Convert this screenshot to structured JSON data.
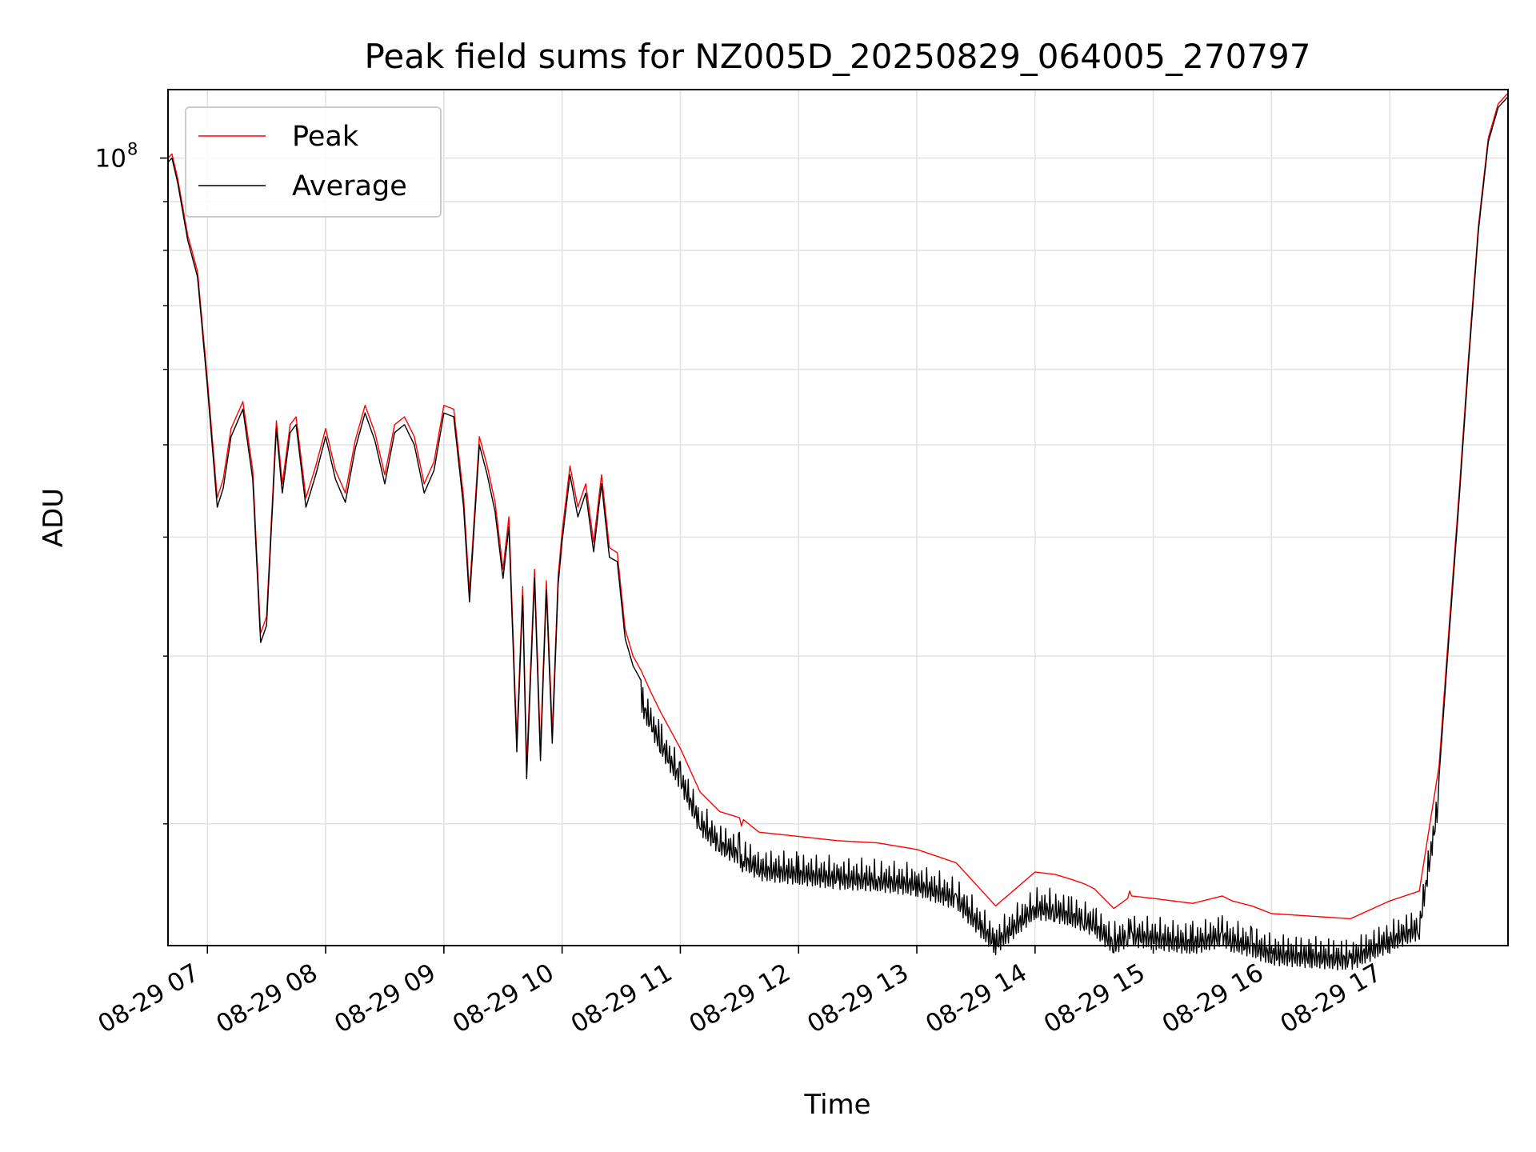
{
  "chart_data": {
    "type": "line",
    "title": "Peak field sums for NZ005D_20250829_064005_270797",
    "xlabel": "Time",
    "ylabel": "ADU",
    "y_scale": "log",
    "y_tick_label_base": "10",
    "y_tick_label_exp": "8",
    "y_major_ticks": [
      100000000
    ],
    "y_minor_ticks": [
      20000000,
      30000000,
      40000000,
      50000000,
      60000000,
      70000000,
      80000000,
      90000000
    ],
    "ylim": [
      14900000,
      118000000
    ],
    "xlim": [
      "2025-08-29 06:40",
      "2025-08-29 18:00"
    ],
    "x_ticks": [
      {
        "time": "2025-08-29 07:00",
        "label": "08-29 07"
      },
      {
        "time": "2025-08-29 08:00",
        "label": "08-29 08"
      },
      {
        "time": "2025-08-29 09:00",
        "label": "08-29 09"
      },
      {
        "time": "2025-08-29 10:00",
        "label": "08-29 10"
      },
      {
        "time": "2025-08-29 11:00",
        "label": "08-29 11"
      },
      {
        "time": "2025-08-29 12:00",
        "label": "08-29 12"
      },
      {
        "time": "2025-08-29 13:00",
        "label": "08-29 13"
      },
      {
        "time": "2025-08-29 14:00",
        "label": "08-29 14"
      },
      {
        "time": "2025-08-29 15:00",
        "label": "08-29 15"
      },
      {
        "time": "2025-08-29 16:00",
        "label": "08-29 16"
      },
      {
        "time": "2025-08-29 17:00",
        "label": "08-29 17"
      }
    ],
    "grid": true,
    "legend_position": "top-left",
    "series": [
      {
        "name": "Peak",
        "color": "#ff0000",
        "x": [
          "2025-08-29 06:40",
          "2025-08-29 06:42",
          "2025-08-29 06:45",
          "2025-08-29 06:50",
          "2025-08-29 06:55",
          "2025-08-29 07:00",
          "2025-08-29 07:05",
          "2025-08-29 07:08",
          "2025-08-29 07:12",
          "2025-08-29 07:18",
          "2025-08-29 07:23",
          "2025-08-29 07:27",
          "2025-08-29 07:30",
          "2025-08-29 07:35",
          "2025-08-29 07:38",
          "2025-08-29 07:42",
          "2025-08-29 07:45",
          "2025-08-29 07:50",
          "2025-08-29 07:55",
          "2025-08-29 08:00",
          "2025-08-29 08:05",
          "2025-08-29 08:10",
          "2025-08-29 08:15",
          "2025-08-29 08:20",
          "2025-08-29 08:25",
          "2025-08-29 08:30",
          "2025-08-29 08:35",
          "2025-08-29 08:40",
          "2025-08-29 08:45",
          "2025-08-29 08:50",
          "2025-08-29 08:55",
          "2025-08-29 09:00",
          "2025-08-29 09:05",
          "2025-08-29 09:10",
          "2025-08-29 09:13",
          "2025-08-29 09:18",
          "2025-08-29 09:22",
          "2025-08-29 09:26",
          "2025-08-29 09:30",
          "2025-08-29 09:33",
          "2025-08-29 09:37",
          "2025-08-29 09:40",
          "2025-08-29 09:42",
          "2025-08-29 09:46",
          "2025-08-29 09:49",
          "2025-08-29 09:52",
          "2025-08-29 09:55",
          "2025-08-29 09:58",
          "2025-08-29 10:00",
          "2025-08-29 10:04",
          "2025-08-29 10:08",
          "2025-08-29 10:12",
          "2025-08-29 10:16",
          "2025-08-29 10:20",
          "2025-08-29 10:24",
          "2025-08-29 10:28",
          "2025-08-29 10:32",
          "2025-08-29 10:36",
          "2025-08-29 10:40",
          "2025-08-29 10:45",
          "2025-08-29 10:50",
          "2025-08-29 11:00",
          "2025-08-29 11:10",
          "2025-08-29 11:20",
          "2025-08-29 11:30",
          "2025-08-29 11:31",
          "2025-08-29 11:32",
          "2025-08-29 11:40",
          "2025-08-29 12:00",
          "2025-08-29 12:20",
          "2025-08-29 12:40",
          "2025-08-29 13:00",
          "2025-08-29 13:20",
          "2025-08-29 13:40",
          "2025-08-29 14:00",
          "2025-08-29 14:10",
          "2025-08-29 14:18",
          "2025-08-29 14:25",
          "2025-08-29 14:30",
          "2025-08-29 14:40",
          "2025-08-29 14:47",
          "2025-08-29 14:48",
          "2025-08-29 14:49",
          "2025-08-29 15:00",
          "2025-08-29 15:20",
          "2025-08-29 15:35",
          "2025-08-29 15:40",
          "2025-08-29 15:50",
          "2025-08-29 16:00",
          "2025-08-29 16:20",
          "2025-08-29 16:40",
          "2025-08-29 17:00",
          "2025-08-29 17:15",
          "2025-08-29 17:25",
          "2025-08-29 17:30",
          "2025-08-29 17:35",
          "2025-08-29 17:40",
          "2025-08-29 17:45",
          "2025-08-29 17:50",
          "2025-08-29 17:55",
          "2025-08-29 18:00"
        ],
        "y": [
          100000000,
          101000000,
          95000000,
          83000000,
          76000000,
          58500000,
          44000000,
          46000000,
          52000000,
          55500000,
          47000000,
          31700000,
          33000000,
          53000000,
          45500000,
          52500000,
          53500000,
          44000000,
          47500000,
          52000000,
          47000000,
          44500000,
          50500000,
          55000000,
          51500000,
          46500000,
          52500000,
          53500000,
          51000000,
          45500000,
          48000000,
          55000000,
          54500000,
          44000000,
          35000000,
          51000000,
          47500000,
          43500000,
          37000000,
          42000000,
          24500000,
          35500000,
          23000000,
          37000000,
          24000000,
          36000000,
          25000000,
          36500000,
          40500000,
          47500000,
          43000000,
          45500000,
          39500000,
          46500000,
          39000000,
          38500000,
          32000000,
          30000000,
          29000000,
          27500000,
          26200000,
          24000000,
          21600000,
          20600000,
          20300000,
          19900000,
          20200000,
          19600000,
          19400000,
          19200000,
          19100000,
          18800000,
          18200000,
          16400000,
          17800000,
          17700000,
          17500000,
          17300000,
          17100000,
          16300000,
          16700000,
          17000000,
          16800000,
          16700000,
          16500000,
          16800000,
          16600000,
          16400000,
          16100000,
          16000000,
          15900000,
          16600000,
          17000000,
          23000000,
          32000000,
          44000000,
          62000000,
          85000000,
          105000000,
          114000000,
          117000000
        ]
      },
      {
        "name": "Average",
        "color": "#000000",
        "x": [
          "2025-08-29 06:40",
          "2025-08-29 06:42",
          "2025-08-29 06:45",
          "2025-08-29 06:50",
          "2025-08-29 06:55",
          "2025-08-29 07:00",
          "2025-08-29 07:05",
          "2025-08-29 07:08",
          "2025-08-29 07:12",
          "2025-08-29 07:18",
          "2025-08-29 07:23",
          "2025-08-29 07:27",
          "2025-08-29 07:30",
          "2025-08-29 07:35",
          "2025-08-29 07:38",
          "2025-08-29 07:42",
          "2025-08-29 07:45",
          "2025-08-29 07:50",
          "2025-08-29 07:55",
          "2025-08-29 08:00",
          "2025-08-29 08:05",
          "2025-08-29 08:10",
          "2025-08-29 08:15",
          "2025-08-29 08:20",
          "2025-08-29 08:25",
          "2025-08-29 08:30",
          "2025-08-29 08:35",
          "2025-08-29 08:40",
          "2025-08-29 08:45",
          "2025-08-29 08:50",
          "2025-08-29 08:55",
          "2025-08-29 09:00",
          "2025-08-29 09:05",
          "2025-08-29 09:10",
          "2025-08-29 09:13",
          "2025-08-29 09:18",
          "2025-08-29 09:22",
          "2025-08-29 09:26",
          "2025-08-29 09:30",
          "2025-08-29 09:33",
          "2025-08-29 09:37",
          "2025-08-29 09:40",
          "2025-08-29 09:42",
          "2025-08-29 09:46",
          "2025-08-29 09:49",
          "2025-08-29 09:52",
          "2025-08-29 09:55",
          "2025-08-29 09:58",
          "2025-08-29 10:00",
          "2025-08-29 10:04",
          "2025-08-29 10:08",
          "2025-08-29 10:12",
          "2025-08-29 10:16",
          "2025-08-29 10:20",
          "2025-08-29 10:24",
          "2025-08-29 10:28",
          "2025-08-29 10:32",
          "2025-08-29 10:36",
          "2025-08-29 10:40",
          "2025-08-29 10:45",
          "2025-08-29 10:50",
          "2025-08-29 11:00",
          "2025-08-29 11:10",
          "2025-08-29 11:20",
          "2025-08-29 11:30",
          "2025-08-29 11:31",
          "2025-08-29 11:32",
          "2025-08-29 11:40",
          "2025-08-29 12:00",
          "2025-08-29 12:20",
          "2025-08-29 12:40",
          "2025-08-29 13:00",
          "2025-08-29 13:20",
          "2025-08-29 13:40",
          "2025-08-29 14:00",
          "2025-08-29 14:10",
          "2025-08-29 14:18",
          "2025-08-29 14:25",
          "2025-08-29 14:30",
          "2025-08-29 14:40",
          "2025-08-29 14:47",
          "2025-08-29 14:48",
          "2025-08-29 14:49",
          "2025-08-29 15:00",
          "2025-08-29 15:20",
          "2025-08-29 15:35",
          "2025-08-29 15:40",
          "2025-08-29 15:50",
          "2025-08-29 16:00",
          "2025-08-29 16:20",
          "2025-08-29 16:40",
          "2025-08-29 17:00",
          "2025-08-29 17:15",
          "2025-08-29 17:25",
          "2025-08-29 17:30",
          "2025-08-29 17:35",
          "2025-08-29 17:40",
          "2025-08-29 17:45",
          "2025-08-29 17:50",
          "2025-08-29 17:55",
          "2025-08-29 18:00"
        ],
        "y": [
          99000000,
          100000000,
          94000000,
          82000000,
          75000000,
          57500000,
          43000000,
          45000000,
          51000000,
          54500000,
          46000000,
          31000000,
          32300000,
          52000000,
          44500000,
          51500000,
          52500000,
          43000000,
          46500000,
          51000000,
          46000000,
          43500000,
          49500000,
          54000000,
          50500000,
          45500000,
          51500000,
          52500000,
          50000000,
          44500000,
          47000000,
          54000000,
          53500000,
          43000000,
          34200000,
          50000000,
          46500000,
          42500000,
          36200000,
          41000000,
          23800000,
          34700000,
          22300000,
          36200000,
          23300000,
          35200000,
          24300000,
          35700000,
          39600000,
          46500000,
          42000000,
          44500000,
          38600000,
          45500000,
          38100000,
          37700000,
          31300000,
          29300000,
          28300000,
          26900000,
          25600000,
          23500000,
          21100000,
          20100000,
          19600000,
          19200000,
          19400000,
          18900000,
          18700000,
          18500000,
          18400000,
          18200000,
          17600000,
          15800000,
          17200000,
          17100000,
          16900000,
          16700000,
          16500000,
          15800000,
          16100000,
          16200000,
          16100000,
          16000000,
          15800000,
          16100000,
          15900000,
          15700000,
          15400000,
          15300000,
          15200000,
          15900000,
          16400000,
          22400000,
          31300000,
          43200000,
          61000000,
          84000000,
          104000000,
          113000000,
          116000000
        ]
      }
    ]
  }
}
